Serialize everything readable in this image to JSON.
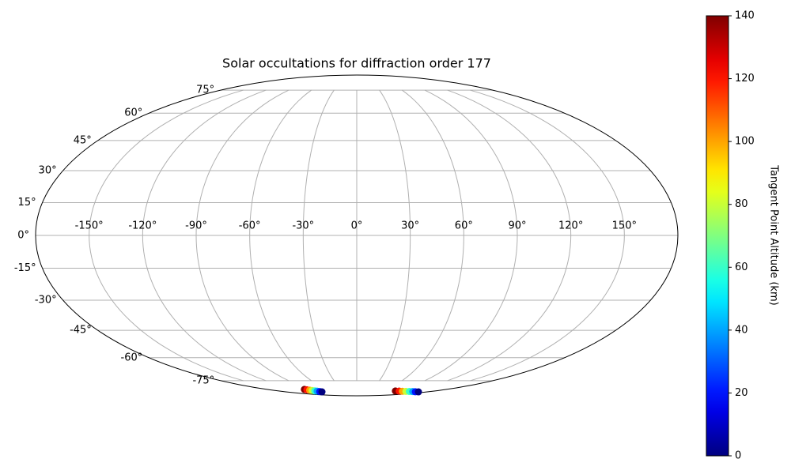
{
  "chart_data": {
    "type": "scatter",
    "projection": "mollweide",
    "title": "Solar occultations for diffraction order 177",
    "xticks": [
      {
        "value": -150,
        "label": "-150°"
      },
      {
        "value": -120,
        "label": "-120°"
      },
      {
        "value": -90,
        "label": "-90°"
      },
      {
        "value": -60,
        "label": "-60°"
      },
      {
        "value": -30,
        "label": "-30°"
      },
      {
        "value": 0,
        "label": "0°"
      },
      {
        "value": 30,
        "label": "30°"
      },
      {
        "value": 60,
        "label": "60°"
      },
      {
        "value": 90,
        "label": "90°"
      },
      {
        "value": 120,
        "label": "120°"
      },
      {
        "value": 150,
        "label": "150°"
      }
    ],
    "yticks": [
      {
        "value": -75,
        "label": "-75°"
      },
      {
        "value": -60,
        "label": "-60°"
      },
      {
        "value": -45,
        "label": "-45°"
      },
      {
        "value": -30,
        "label": "-30°"
      },
      {
        "value": -15,
        "label": "-15°"
      },
      {
        "value": 0,
        "label": "0°"
      },
      {
        "value": 15,
        "label": "15°"
      },
      {
        "value": 30,
        "label": "30°"
      },
      {
        "value": 45,
        "label": "45°"
      },
      {
        "value": 60,
        "label": "60°"
      },
      {
        "value": 75,
        "label": "75°"
      }
    ],
    "grid": true,
    "colormap": "jet",
    "clim": [
      0,
      140
    ],
    "cticks": [
      0,
      20,
      40,
      60,
      80,
      100,
      120,
      140
    ],
    "colorbar_label": "Tangent Point Altitude (km)",
    "x": [
      -105,
      -102.6,
      -100.3,
      -97.9,
      -95.6,
      -93.2,
      -90.9,
      -88.5,
      89,
      98.7,
      108.4,
      118.1,
      127.9,
      137.6,
      147.3,
      157
    ],
    "y": [
      -82.1,
      -82.4,
      -82.8,
      -83.1,
      -83.5,
      -83.8,
      -84.2,
      -84.5,
      -83.6,
      -83.7,
      -83.9,
      -84.0,
      -84.1,
      -84.2,
      -84.4,
      -84.5
    ],
    "values": [
      140,
      120,
      100,
      80,
      60,
      40,
      20,
      0,
      140,
      120,
      100,
      80,
      60,
      40,
      20,
      0
    ]
  }
}
